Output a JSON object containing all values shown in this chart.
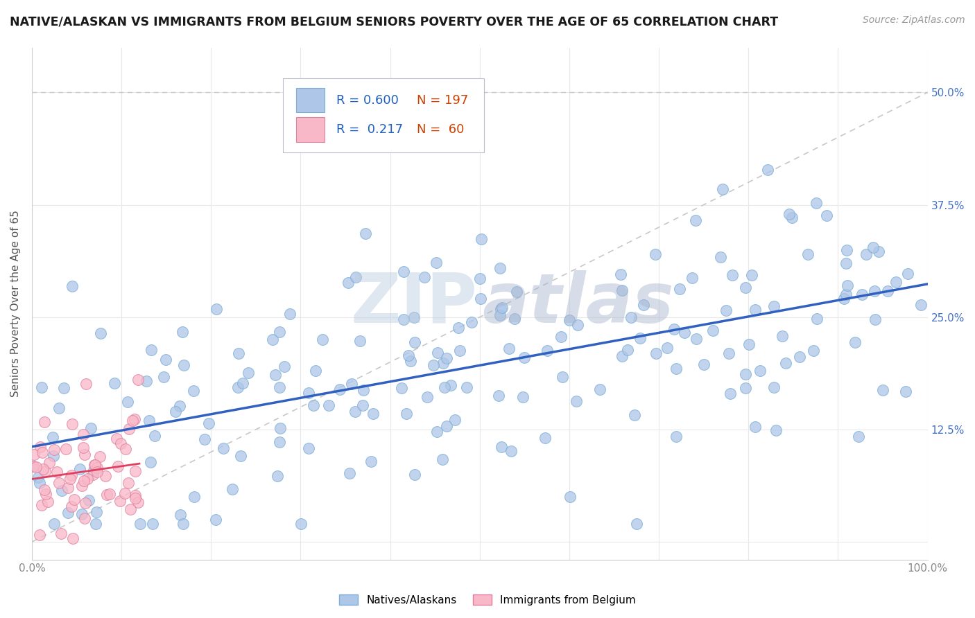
{
  "title": "NATIVE/ALASKAN VS IMMIGRANTS FROM BELGIUM SENIORS POVERTY OVER THE AGE OF 65 CORRELATION CHART",
  "source": "Source: ZipAtlas.com",
  "ylabel": "Seniors Poverty Over the Age of 65",
  "series1_label": "Natives/Alaskans",
  "series2_label": "Immigrants from Belgium",
  "series1_R": 0.6,
  "series1_N": 197,
  "series2_R": 0.217,
  "series2_N": 60,
  "xlim": [
    0,
    100
  ],
  "ylim": [
    -2,
    55
  ],
  "series1_color": "#aec6e8",
  "series1_edge_color": "#7aaed6",
  "series1_trendline_color": "#3060c0",
  "series2_color": "#f9b8c8",
  "series2_edge_color": "#e080a0",
  "series2_trendline_color": "#e04060",
  "background_color": "#ffffff",
  "legend_R_color": "#2060c0",
  "legend_N_color": "#d04000",
  "dashed_line_color": "#c8c8c8",
  "title_fontsize": 12.5,
  "axis_label_fontsize": 11,
  "tick_color": "#888888",
  "right_tick_color": "#4472c4"
}
